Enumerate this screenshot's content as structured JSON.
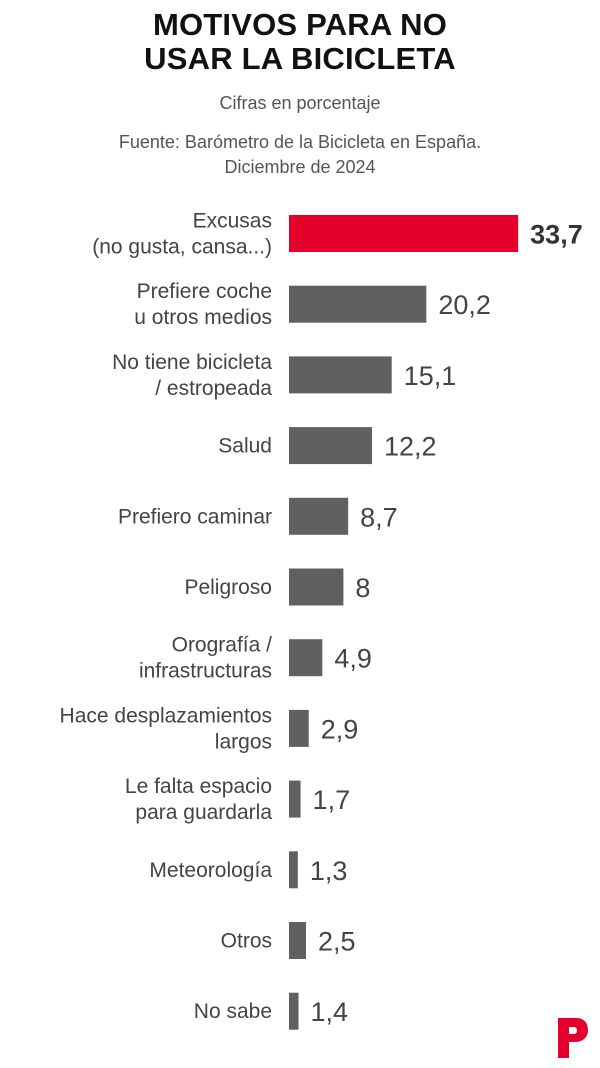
{
  "chart_data": {
    "type": "bar",
    "orientation": "horizontal",
    "title_lines": [
      "MOTIVOS PARA NO",
      "USAR LA BICICLETA"
    ],
    "subtitle": "Cifras en porcentaje",
    "source_lines": [
      "Fuente: Barómetro de la Bicicleta en España.",
      "Diciembre de 2024"
    ],
    "categories": [
      [
        "Excusas",
        "(no gusta, cansa...)"
      ],
      [
        "Prefiere coche",
        "u otros medios"
      ],
      [
        "No tiene bicicleta",
        "/ estropeada"
      ],
      [
        "Salud"
      ],
      [
        "Prefiero caminar"
      ],
      [
        "Peligroso"
      ],
      [
        "Orografía /",
        "infrastructuras"
      ],
      [
        "Hace desplazamientos",
        "largos"
      ],
      [
        "Le falta espacio",
        "para guardarla"
      ],
      [
        "Meteorología"
      ],
      [
        "Otros"
      ],
      [
        "No sabe"
      ]
    ],
    "values": [
      33.7,
      20.2,
      15.1,
      12.2,
      8.7,
      8,
      4.9,
      2.9,
      1.7,
      1.3,
      2.5,
      1.4
    ],
    "value_labels": [
      "33,7",
      "20,2",
      "15,1",
      "12,2",
      "8,7",
      "8",
      "4,9",
      "2,9",
      "1,7",
      "1,3",
      "2,5",
      "1,4"
    ],
    "highlight_index": 0,
    "colors": {
      "highlight": "#e4002b",
      "bar": "#606060",
      "logo": "#e4002b"
    },
    "grid": false,
    "legend": "none"
  },
  "logo_icon": "publisher-p-logo"
}
